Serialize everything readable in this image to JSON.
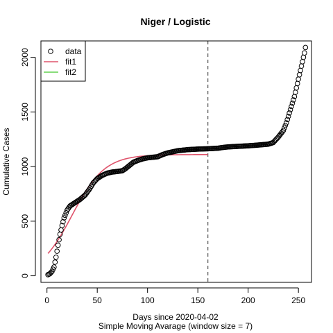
{
  "chart_data": {
    "type": "scatter",
    "title": "Niger / Logistic",
    "xlabel": "Days since 2020-04-02",
    "xlabel_sub": "Simple Moving Avarage (window size = 7)",
    "ylabel": "Cumulative Cases",
    "xlim": [
      -6,
      263
    ],
    "ylim": [
      -60,
      2150
    ],
    "x_ticks": [
      0,
      50,
      100,
      150,
      200,
      250
    ],
    "y_ticks": [
      0,
      500,
      1000,
      1500,
      2000
    ],
    "vline": 160,
    "legend": {
      "position": "top-left",
      "entries": [
        {
          "label": "data",
          "kind": "point",
          "color": "#000000"
        },
        {
          "label": "fit1",
          "kind": "line",
          "color": "#DF536B"
        },
        {
          "label": "fit2",
          "kind": "line",
          "color": "#61D04F"
        }
      ]
    },
    "series": [
      {
        "name": "data",
        "kind": "points",
        "color": "#000000",
        "x_start": 1,
        "x_step": 1,
        "anchors": [
          [
            1,
            10
          ],
          [
            3,
            20
          ],
          [
            5,
            40
          ],
          [
            7,
            80
          ],
          [
            9,
            170
          ],
          [
            11,
            280
          ],
          [
            13,
            380
          ],
          [
            15,
            460
          ],
          [
            17,
            530
          ],
          [
            20,
            600
          ],
          [
            23,
            640
          ],
          [
            28,
            670
          ],
          [
            33,
            700
          ],
          [
            38,
            740
          ],
          [
            42,
            790
          ],
          [
            46,
            850
          ],
          [
            50,
            890
          ],
          [
            55,
            920
          ],
          [
            60,
            940
          ],
          [
            65,
            950
          ],
          [
            70,
            955
          ],
          [
            75,
            962
          ],
          [
            78,
            980
          ],
          [
            82,
            1010
          ],
          [
            86,
            1040
          ],
          [
            90,
            1055
          ],
          [
            95,
            1070
          ],
          [
            100,
            1080
          ],
          [
            105,
            1085
          ],
          [
            110,
            1090
          ],
          [
            115,
            1110
          ],
          [
            120,
            1125
          ],
          [
            125,
            1135
          ],
          [
            130,
            1145
          ],
          [
            140,
            1155
          ],
          [
            150,
            1160
          ],
          [
            160,
            1163
          ],
          [
            170,
            1168
          ],
          [
            175,
            1175
          ],
          [
            180,
            1180
          ],
          [
            190,
            1185
          ],
          [
            200,
            1190
          ],
          [
            210,
            1197
          ],
          [
            220,
            1205
          ],
          [
            225,
            1220
          ],
          [
            230,
            1270
          ],
          [
            235,
            1330
          ],
          [
            238,
            1400
          ],
          [
            240,
            1460
          ],
          [
            242,
            1520
          ],
          [
            244,
            1580
          ],
          [
            246,
            1640
          ],
          [
            248,
            1720
          ],
          [
            250,
            1800
          ],
          [
            252,
            1880
          ],
          [
            254,
            1960
          ],
          [
            256,
            2040
          ],
          [
            257,
            2090
          ]
        ]
      },
      {
        "name": "fit1",
        "kind": "line",
        "color": "#DF536B",
        "x_start": 1,
        "x_end": 160,
        "logistic": {
          "K": 1110,
          "r": 0.062,
          "x0": 25
        }
      },
      {
        "name": "fit2",
        "kind": "line",
        "color": "#61D04F",
        "values": []
      }
    ]
  }
}
